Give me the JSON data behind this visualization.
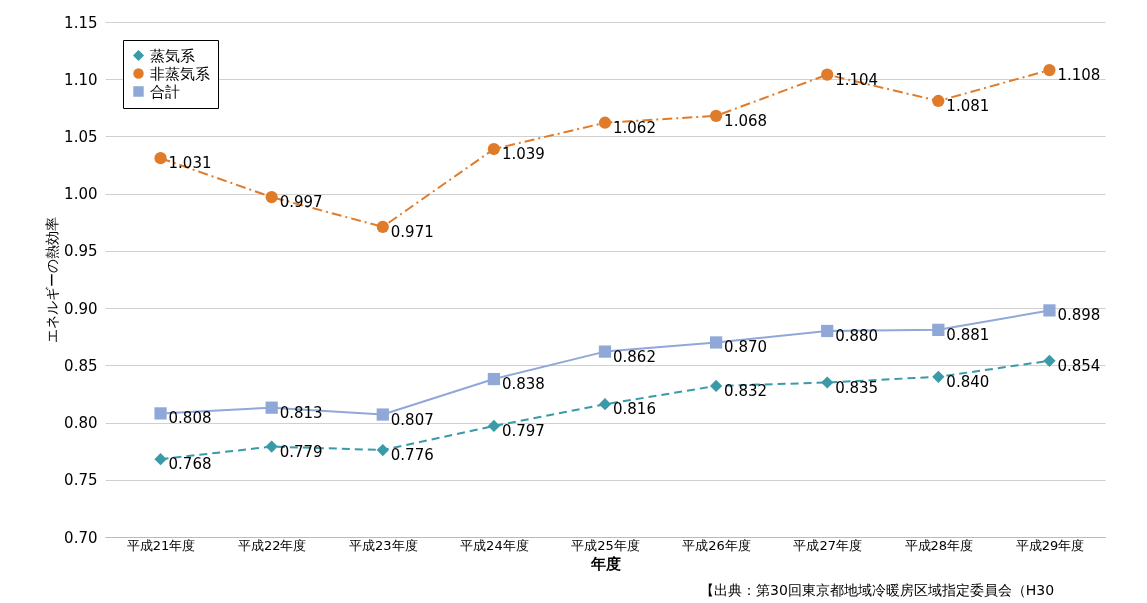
{
  "chart_data": {
    "type": "line",
    "xlabel": "年度",
    "ylabel": "エネルギーの熱効率",
    "categories": [
      "平成21年度",
      "平成22年度",
      "平成23年度",
      "平成24年度",
      "平成25年度",
      "平成26年度",
      "平成27年度",
      "平成28年度",
      "平成29年度"
    ],
    "series": [
      {
        "name": "蒸気系",
        "color": "#3a9aa8",
        "marker": "diamond",
        "line_style": "dashed",
        "values": [
          0.768,
          0.779,
          0.776,
          0.797,
          0.816,
          0.832,
          0.835,
          0.84,
          0.854
        ],
        "value_labels": [
          "0.768",
          "0.779",
          "0.776",
          "0.797",
          "0.816",
          "0.832",
          "0.835",
          "0.840",
          "0.854"
        ]
      },
      {
        "name": "非蒸気系",
        "color": "#e07b2a",
        "marker": "circle",
        "line_style": "dashdot",
        "values": [
          1.031,
          0.997,
          0.971,
          1.039,
          1.062,
          1.068,
          1.104,
          1.081,
          1.108
        ],
        "value_labels": [
          "1.031",
          "0.997",
          "0.971",
          "1.039",
          "1.062",
          "1.068",
          "1.104",
          "1.081",
          "1.108"
        ]
      },
      {
        "name": "合計",
        "color": "#8fa8d8",
        "marker": "square",
        "line_style": "solid",
        "values": [
          0.808,
          0.813,
          0.807,
          0.838,
          0.862,
          0.87,
          0.88,
          0.881,
          0.898
        ],
        "value_labels": [
          "0.808",
          "0.813",
          "0.807",
          "0.838",
          "0.862",
          "0.870",
          "0.880",
          "0.881",
          "0.898"
        ]
      }
    ],
    "ylim": [
      0.7,
      1.15
    ],
    "yticks": [
      {
        "value": 0.7,
        "label": "0.70"
      },
      0.75,
      {
        "value": 0.8,
        "label": "0.80"
      },
      0.85,
      {
        "value": 0.9,
        "label": "0.90"
      },
      0.95,
      {
        "value": 1,
        "label": "1.00"
      },
      1.05,
      {
        "value": 1.1,
        "label": "1.10"
      },
      1.15
    ],
    "grid": "y",
    "legend": "top left",
    "annotations": [
      "【出典：第30回東京都地域冷暖房区域指定委員会（H30"
    ]
  }
}
